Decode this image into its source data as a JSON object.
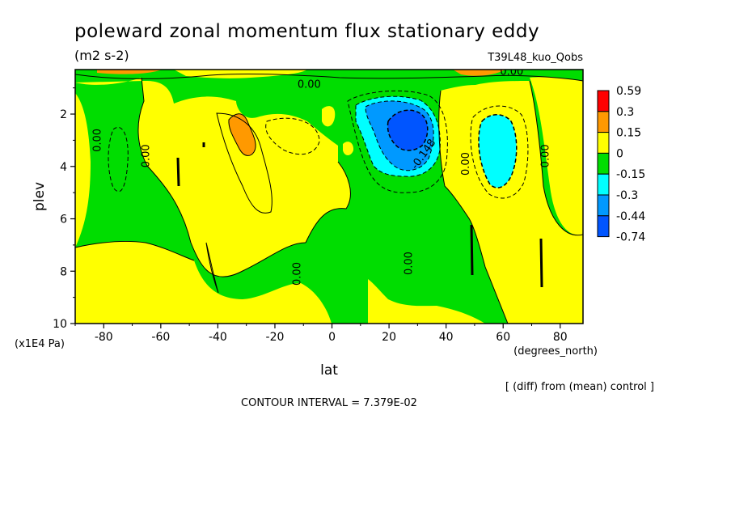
{
  "chart_data": {
    "type": "heatmap",
    "title": "poleward zonal momentum flux stationary eddy",
    "units": "(m2 s-2)",
    "experiment": "T39L48_kuo_Qobs",
    "xlabel": "lat",
    "xunits": "(degrees_north)",
    "ylabel": "plev",
    "yunits": "(x1E4 Pa)",
    "xlim": [
      -90,
      88
    ],
    "ylim": [
      10,
      0.3
    ],
    "x_ticks": [
      -80,
      -60,
      -40,
      -20,
      0,
      20,
      40,
      60,
      80
    ],
    "y_ticks": [
      2,
      4,
      6,
      8,
      10
    ],
    "colorbar": {
      "levels": [
        "0.59",
        "0.3",
        "0.15",
        "0",
        "-0.15",
        "-0.3",
        "-0.44",
        "-0.74"
      ],
      "colors": [
        "#ff0000",
        "#ff9900",
        "#ffff00",
        "#00dd00",
        "#00ffff",
        "#0099ff",
        "#0055ff"
      ]
    },
    "contour_labels": [
      {
        "text": "0.00",
        "lat": -8,
        "plev": 1.0
      },
      {
        "text": "0.00",
        "lat": -81,
        "plev": 3.0
      },
      {
        "text": "0.00",
        "lat": -64,
        "plev": 3.6
      },
      {
        "text": "0.00",
        "lat": -11,
        "plev": 8.1
      },
      {
        "text": "0.00",
        "lat": 28,
        "plev": 7.7
      },
      {
        "text": "0.00",
        "lat": 48,
        "plev": 3.9
      },
      {
        "text": "0.00",
        "lat": 76,
        "plev": 3.6
      },
      {
        "text": "0.00",
        "lat": 63,
        "plev": 0.5
      },
      {
        "text": "-0.148",
        "lat": 33,
        "plev": 3.6
      }
    ],
    "contour_interval": "CONTOUR INTERVAL = 7.379E-02",
    "note": "[ (diff) from (mean) control ]"
  }
}
